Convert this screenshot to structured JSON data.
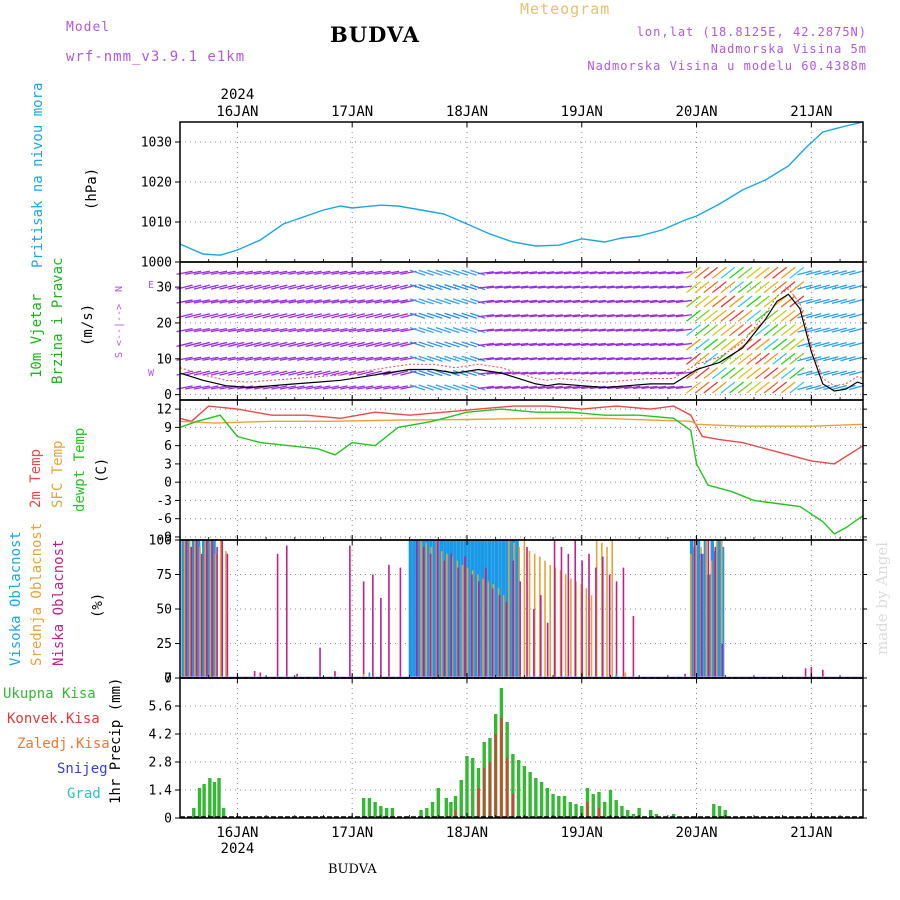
{
  "header": {
    "model_label": "Model",
    "model_name": "wrf-nmm_v3.9.1 e1km",
    "title": "BUDVA",
    "product": "Meteogram",
    "lonlat": "lon,lat (18.8125E, 42.2875N)",
    "elevation": "Nadmorska Visina 5m",
    "model_elevation": "Nadmorska Visina u modelu 60.4388m",
    "footer": "BUDVA",
    "credit": "made by Angel"
  },
  "colors": {
    "pressure": "#1aa6e6",
    "temp2m": "#e84a4a",
    "sfc": "#e8a23a",
    "dewpt": "#22c322",
    "high_cloud": "#1a9ae6",
    "mid_cloud": "#e8a23a",
    "low_cloud": "#c0208a",
    "precip_total": "#35b935",
    "precip_conv": "#e03a3a",
    "wind_label": "#1ab41a",
    "compass": "#b05ad8",
    "purple_text": "#b05ad8",
    "orange_text": "#e8c070"
  },
  "chart_data": [
    {
      "type": "line",
      "panel": "pressure",
      "year": "2024",
      "dates": [
        "16JAN",
        "17JAN",
        "18JAN",
        "19JAN",
        "20JAN",
        "21JAN"
      ],
      "x_unit": "days from 16JAN 00UTC",
      "xlim": [
        -0.5,
        5.45
      ],
      "ylabel": "Pritisak na nivou mora",
      "unit_label": "(hPa)",
      "ylim": [
        1000,
        1035
      ],
      "yticks": [
        1000,
        1010,
        1020,
        1030
      ],
      "grid": true,
      "series": [
        {
          "name": "Pritisak na nivou mora",
          "x": [
            -0.5,
            -0.3,
            -0.15,
            0.0,
            0.2,
            0.4,
            0.6,
            0.75,
            0.9,
            1.0,
            1.1,
            1.25,
            1.4,
            1.6,
            1.8,
            2.0,
            2.2,
            2.4,
            2.6,
            2.8,
            3.0,
            3.2,
            3.35,
            3.5,
            3.7,
            3.9,
            4.0,
            4.2,
            4.4,
            4.6,
            4.8,
            4.95,
            5.1,
            5.3,
            5.45
          ],
          "y": [
            1004.5,
            1002.0,
            1001.7,
            1003.0,
            1005.5,
            1009.5,
            1011.5,
            1013.0,
            1014.0,
            1013.5,
            1013.8,
            1014.2,
            1014.0,
            1013.0,
            1012.0,
            1009.5,
            1007.0,
            1005.0,
            1004.0,
            1004.2,
            1005.8,
            1005.0,
            1006.0,
            1006.5,
            1008.0,
            1010.5,
            1011.5,
            1014.5,
            1018.0,
            1020.5,
            1024.0,
            1028.5,
            1032.5,
            1034.0,
            1035.0
          ]
        }
      ]
    },
    {
      "type": "line",
      "panel": "wind",
      "ylabel": "10m Vjetar Brzina i Pravac",
      "unit_label": "(m/s)",
      "compass": {
        "n": "N",
        "s": "S",
        "e": "E",
        "w": "W"
      },
      "ylim": [
        -1.5,
        37
      ],
      "yticks": [
        0,
        10,
        20,
        30
      ],
      "grid": true,
      "vector_rows": [
        2,
        6,
        10,
        14,
        18,
        22,
        26,
        30,
        34
      ],
      "series": [
        {
          "name": "10m Vjetar Brzina",
          "x": [
            -0.5,
            -0.3,
            -0.1,
            0.1,
            0.3,
            0.5,
            0.7,
            0.9,
            1.1,
            1.3,
            1.5,
            1.7,
            1.9,
            2.1,
            2.3,
            2.5,
            2.6,
            2.7,
            2.8,
            3.0,
            3.2,
            3.4,
            3.6,
            3.8,
            4.0,
            4.2,
            4.4,
            4.6,
            4.7,
            4.8,
            4.9,
            5.0,
            5.1,
            5.2,
            5.3,
            5.4,
            5.45
          ],
          "y": [
            6,
            4,
            2.5,
            2,
            2.5,
            3,
            3.5,
            4,
            5,
            6,
            7,
            7,
            6,
            7,
            6,
            4,
            3,
            2.5,
            3,
            2.5,
            2,
            2.5,
            3,
            3,
            7,
            9,
            13,
            21,
            26,
            28,
            24,
            12,
            3,
            1,
            1.5,
            3.5,
            3
          ]
        }
      ]
    },
    {
      "type": "line",
      "panel": "temperature",
      "unit_label": "(C)",
      "ylim": [
        -9.5,
        13.5
      ],
      "yticks": [
        -9,
        -6,
        -3,
        0,
        3,
        6,
        9,
        12
      ],
      "grid": true,
      "series": [
        {
          "name": "2m Temp",
          "x": [
            -0.5,
            -0.4,
            -0.25,
            0.0,
            0.3,
            0.6,
            0.9,
            1.2,
            1.5,
            1.8,
            2.1,
            2.4,
            2.7,
            3.0,
            3.3,
            3.6,
            3.8,
            3.95,
            4.05,
            4.2,
            4.4,
            4.6,
            4.8,
            5.0,
            5.2,
            5.45
          ],
          "y": [
            10.5,
            10.0,
            12.5,
            12.0,
            11.0,
            11.0,
            10.5,
            11.5,
            11.0,
            11.5,
            12.0,
            12.5,
            12.5,
            12.0,
            12.5,
            12.0,
            12.5,
            11.0,
            7.5,
            7.0,
            6.5,
            5.5,
            4.5,
            3.5,
            3.0,
            6.0
          ]
        },
        {
          "name": "SFC Temp",
          "x": [
            -0.5,
            -0.2,
            0.3,
            0.8,
            1.4,
            2.0,
            2.6,
            3.2,
            3.6,
            3.95,
            4.0,
            4.4,
            5.0,
            5.45
          ],
          "y": [
            10.0,
            9.7,
            10.0,
            10.0,
            10.2,
            10.3,
            10.5,
            10.5,
            10.2,
            10.0,
            9.5,
            9.2,
            9.2,
            9.5
          ]
        },
        {
          "name": "dewpt Temp",
          "x": [
            -0.5,
            -0.35,
            -0.15,
            0.0,
            0.2,
            0.45,
            0.7,
            0.85,
            1.0,
            1.2,
            1.4,
            1.7,
            2.0,
            2.3,
            2.6,
            2.9,
            3.2,
            3.5,
            3.8,
            3.95,
            4.0,
            4.1,
            4.3,
            4.5,
            4.7,
            4.9,
            5.1,
            5.2,
            5.3,
            5.45
          ],
          "y": [
            9.0,
            10.0,
            11.0,
            7.5,
            6.5,
            6.0,
            5.5,
            4.5,
            6.5,
            6.0,
            9.0,
            10.0,
            11.5,
            12.0,
            11.5,
            11.5,
            11.0,
            11.0,
            10.5,
            8.5,
            3.0,
            -0.5,
            -1.5,
            -3.0,
            -3.5,
            -4.0,
            -6.5,
            -8.5,
            -7.5,
            -5.5
          ]
        }
      ]
    },
    {
      "type": "bar",
      "panel": "cloud",
      "unit_label": "(%)",
      "ylim": [
        0,
        100
      ],
      "yticks": [
        0,
        25,
        50,
        75,
        100
      ],
      "grid": true,
      "bar_groups": [
        {
          "name": "Visoka Oblacnost",
          "x0": -0.46,
          "x1": -0.17,
          "step": 0.045,
          "values": [
            100
          ]
        },
        {
          "name": "Srednja Oblacnost",
          "x0": -0.46,
          "x1": -0.1,
          "step": 0.045,
          "values": [
            100,
            100,
            100,
            95,
            100,
            100,
            90,
            100,
            92
          ]
        },
        {
          "name": "Niska Oblacnost",
          "x0": -0.46,
          "x1": -0.1,
          "step": 0.045,
          "values": [
            100,
            95,
            100,
            90,
            100,
            100,
            95,
            100,
            90
          ]
        },
        {
          "name": "Visoka Oblacnost",
          "x0": 1.52,
          "x1": 2.45,
          "step": 0.03,
          "values": [
            100
          ]
        },
        {
          "name": "Srednja Oblacnost",
          "x0": 1.6,
          "x1": 3.3,
          "step": 0.045,
          "values": [
            100,
            98,
            95,
            100,
            92,
            90,
            88,
            85,
            82,
            80,
            78,
            75,
            72,
            70,
            68,
            65,
            60
          ]
        },
        {
          "name": "Niska Oblacnost",
          "x0": 1.55,
          "x1": 3.4,
          "step": 0.06,
          "values": [
            100,
            95,
            90,
            100,
            85,
            90,
            80,
            88,
            75,
            70,
            80,
            65,
            60,
            55,
            85,
            70,
            95,
            50,
            60,
            40
          ]
        },
        {
          "name": "Visoka Oblacnost",
          "x0": 3.97,
          "x1": 4.25,
          "step": 0.03,
          "values": [
            100,
            95,
            100,
            90,
            100,
            75,
            100,
            92
          ]
        },
        {
          "name": "Srednja Oblacnost",
          "x0": 3.95,
          "x1": 4.25,
          "step": 0.045,
          "values": [
            90,
            100,
            95,
            100,
            85,
            100,
            100
          ]
        },
        {
          "name": "Niska Oblacnost",
          "x0": 3.97,
          "x1": 4.25,
          "step": 0.06,
          "values": [
            100,
            90,
            100,
            95,
            25
          ]
        }
      ],
      "scattered": [
        {
          "name": "Niska Oblacnost",
          "x": [
            0.15,
            0.2,
            0.35,
            0.43,
            0.52,
            0.72,
            0.85,
            0.98,
            1.1,
            1.18,
            1.25,
            1.32,
            1.42,
            3.45,
            3.9,
            4.95,
            5.0,
            5.1
          ],
          "y": [
            5,
            4,
            90,
            96,
            3,
            22,
            5,
            96,
            70,
            75,
            58,
            82,
            80,
            45,
            3,
            7,
            8,
            6
          ]
        },
        {
          "name": "Srednja Oblacnost",
          "x": [
            1.1,
            3.38
          ],
          "y": [
            3,
            4
          ]
        },
        {
          "name": "Visoka Oblacnost",
          "x": [
            1.15,
            3.3
          ],
          "y": [
            4,
            3
          ]
        }
      ]
    },
    {
      "type": "bar",
      "panel": "precipitation",
      "unit_label": "1hr Precip (mm)",
      "ylim": [
        0,
        7
      ],
      "yticks": [
        0,
        1.4,
        2.8,
        4.2,
        5.6,
        7
      ],
      "grid": true,
      "series": [
        {
          "name": "Ukupna Kisa",
          "x": [
            -0.38,
            -0.33,
            -0.29,
            -0.24,
            -0.2,
            -0.16,
            -0.12,
            1.1,
            1.15,
            1.2,
            1.25,
            1.3,
            1.35,
            1.6,
            1.65,
            1.7,
            1.75,
            1.82,
            1.86,
            1.9,
            1.95,
            2.0,
            2.05,
            2.1,
            2.15,
            2.2,
            2.25,
            2.3,
            2.35,
            2.4,
            2.45,
            2.5,
            2.55,
            2.6,
            2.65,
            2.7,
            2.75,
            2.8,
            2.85,
            2.9,
            2.95,
            3.0,
            3.05,
            3.1,
            3.15,
            3.2,
            3.25,
            3.3,
            3.35,
            3.4,
            3.45,
            3.5,
            3.6,
            3.65,
            3.8,
            4.15,
            4.2,
            4.25
          ],
          "y": [
            0.5,
            1.5,
            1.7,
            2.0,
            1.8,
            2.0,
            0.5,
            1.0,
            1.0,
            0.8,
            0.6,
            0.5,
            0.5,
            0.4,
            0.5,
            0.8,
            1.5,
            1.0,
            0.8,
            1.1,
            1.9,
            3.1,
            3.0,
            2.5,
            3.8,
            4.0,
            5.2,
            6.5,
            4.8,
            3.2,
            2.9,
            2.6,
            2.3,
            2.0,
            1.8,
            1.5,
            1.2,
            1.1,
            1.1,
            0.8,
            0.7,
            0.6,
            1.5,
            1.2,
            1.3,
            0.8,
            1.4,
            0.9,
            0.6,
            0.4,
            0.2,
            0.5,
            0.4,
            0.2,
            0.2,
            0.7,
            0.6,
            0.4
          ]
        },
        {
          "name": "Konvek.Kisa",
          "x": [
            1.9,
            2.1,
            2.15,
            2.2,
            2.25,
            2.3,
            2.35,
            2.4,
            3.05,
            3.15
          ],
          "y": [
            0.4,
            1.5,
            2.5,
            2.8,
            4.2,
            5.0,
            3.0,
            1.2,
            0.8,
            0.5
          ]
        }
      ]
    }
  ],
  "panel_labels": {
    "pressure": [
      "Pritisak na nivou mora",
      "(hPa)"
    ],
    "wind": [
      "10m Vjetar",
      "Brzina i Pravac",
      "(m/s)"
    ],
    "temp": [
      "2m Temp",
      "SFC Temp",
      "dewpt Temp",
      "(C)"
    ],
    "cloud": [
      "Visoka Oblacnost",
      "Srednja Oblacnost",
      "Niska Oblacnost",
      "(%)"
    ],
    "precip_unit": "1hr Precip (mm)"
  },
  "precip_legend": [
    "Ukupna Kisa",
    "Konvek.Kisa",
    "Zaledj.Kisa",
    "Snijeg",
    "Grad"
  ],
  "precip_legend_colors": [
    "#35b935",
    "#e03a3a",
    "#f07830",
    "#3a3ae0",
    "#30c0c0"
  ]
}
